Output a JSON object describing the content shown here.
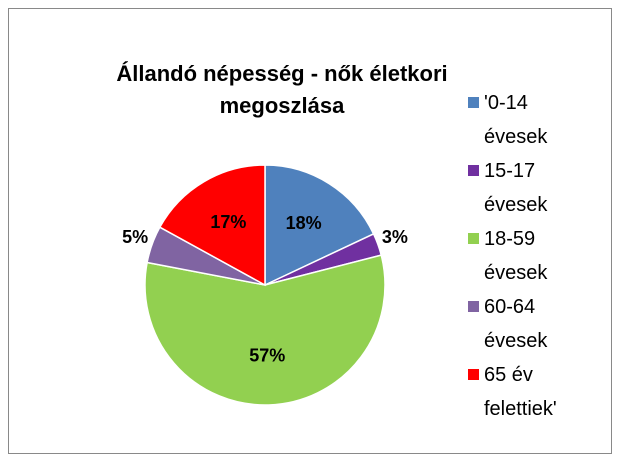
{
  "chart_data": {
    "type": "pie",
    "title": "Állandó népesség - nők életkori megoszlása",
    "series": [
      {
        "name": "'0-14 évesek",
        "color": "#4f81bd",
        "values": [
          18
        ],
        "value_labels": [
          "18%"
        ]
      },
      {
        "name": "15-17 évesek",
        "color": "#7030a0",
        "values": [
          3
        ],
        "value_labels": [
          "3%"
        ]
      },
      {
        "name": "18-59 évesek",
        "color": "#92d050",
        "values": [
          57
        ],
        "value_labels": [
          "57%"
        ]
      },
      {
        "name": "60-64 évesek",
        "color": "#8064a2",
        "values": [
          5
        ],
        "value_labels": [
          "5%"
        ]
      },
      {
        "name": "65 év felettiek'",
        "color": "#ff0000",
        "values": [
          17
        ],
        "value_labels": [
          "17%"
        ]
      }
    ],
    "legend": "right"
  }
}
